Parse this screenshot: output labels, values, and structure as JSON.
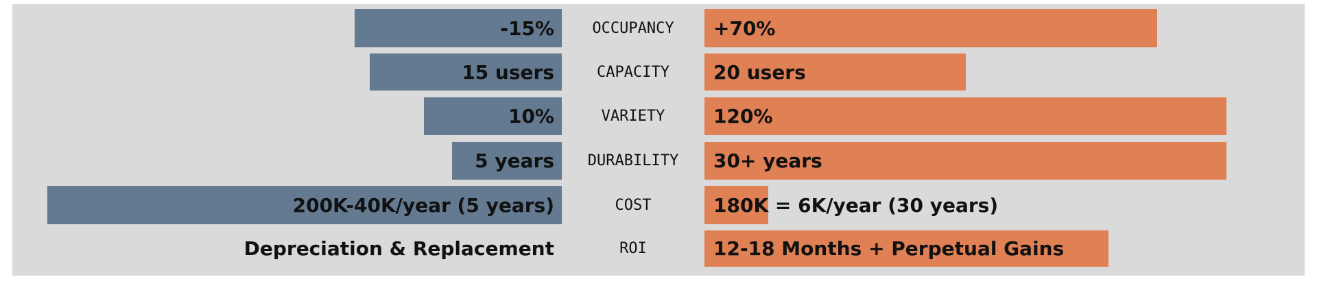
{
  "rows": [
    {
      "label": "OCCUPANCY",
      "left": "-15%",
      "right": "+70%"
    },
    {
      "label": "CAPACITY",
      "left": "15 users",
      "right": "20 users"
    },
    {
      "label": "VARIETY",
      "left": "10%",
      "right": "120%"
    },
    {
      "label": "DURABILITY",
      "left": "5 years",
      "right": "30+ years"
    },
    {
      "label": "COST",
      "left": "200K-40K/year (5 years)",
      "right": "180K = 6K/year (30 years)"
    },
    {
      "label": "ROI",
      "left": "Depreciation & Replacement",
      "right": "12-18 Months + Perpetual Gains"
    }
  ]
}
